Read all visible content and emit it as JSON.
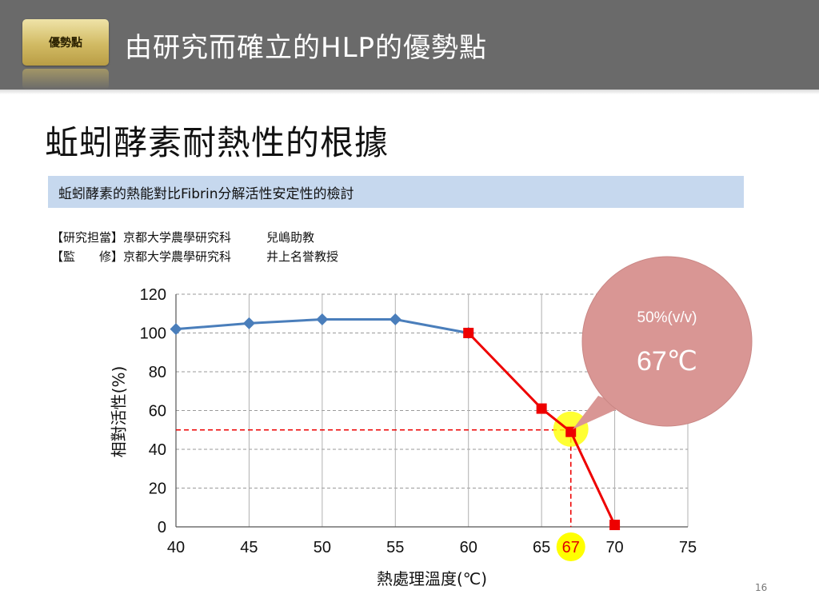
{
  "header": {
    "badge_label": "優勢點",
    "title": "由研究而確立的HLP的優勢點"
  },
  "heading": "蚯蚓酵素耐熱性的根據",
  "subheading": "蚯蚓酵素的熱能對比Fibrin分解活性安定性的檢討",
  "credits": [
    {
      "role": "【研究担當】",
      "org": "京都大学農學研究科",
      "person": "兒嶋助教"
    },
    {
      "role": "【監　　修】",
      "org": "京都大学農學研究科",
      "person": "井上名誉教授"
    }
  ],
  "callout": {
    "line1": "50%(v/v)",
    "line2": "67℃"
  },
  "page_number": "16",
  "colors": {
    "header_bg": "#6a6a6a",
    "subhead_bg": "#c6d8ee",
    "blue_series": "#4a7ebb",
    "red_series": "#ee0000",
    "callout": "#d99694",
    "highlight": "#ffff00"
  },
  "chart_data": {
    "type": "line",
    "xlabel": "熱處理溫度(℃)",
    "ylabel": "相對活性(%)",
    "xlim": [
      40,
      75
    ],
    "ylim": [
      0,
      120
    ],
    "x_ticks": [
      40,
      45,
      50,
      55,
      60,
      65,
      70,
      75
    ],
    "y_ticks": [
      0,
      20,
      40,
      60,
      80,
      100,
      120
    ],
    "highlight_tick": 67,
    "grid": true,
    "series": [
      {
        "color": "#4a7ebb",
        "marker": "diamond",
        "x": [
          40,
          45,
          50,
          55,
          60
        ],
        "y": [
          102,
          105,
          107,
          107,
          100
        ]
      },
      {
        "color": "#ee0000",
        "marker": "square",
        "x": [
          60,
          65,
          67,
          70
        ],
        "y": [
          100,
          61,
          49,
          1
        ]
      }
    ],
    "reference": {
      "x": 67,
      "y": 50
    }
  }
}
